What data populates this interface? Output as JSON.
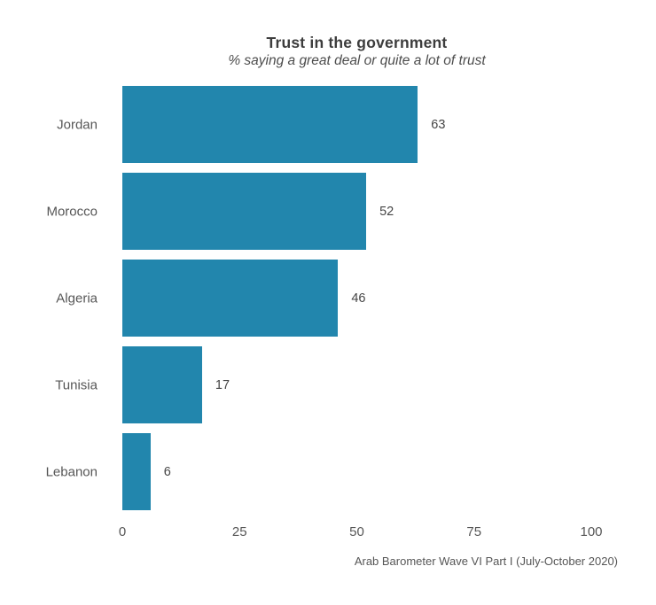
{
  "chart_data": {
    "type": "bar",
    "orientation": "horizontal",
    "title": "Trust in the government",
    "subtitle": "% saying a great deal or quite a lot of trust",
    "categories": [
      "Jordan",
      "Morocco",
      "Algeria",
      "Tunisia",
      "Lebanon"
    ],
    "values": [
      63,
      52,
      46,
      17,
      6
    ],
    "xlim": [
      0,
      100
    ],
    "x_ticks": [
      0,
      25,
      50,
      75,
      100
    ],
    "grid": false,
    "legend": false,
    "bar_color": "#2286ad",
    "value_labels_shown": true,
    "source": "Arab Barometer Wave VI Part I (July-October 2020)"
  },
  "colors": {
    "bar": "#2286ad",
    "title_text": "#3d3d3d",
    "body_text": "#565656",
    "background": "#ffffff"
  }
}
